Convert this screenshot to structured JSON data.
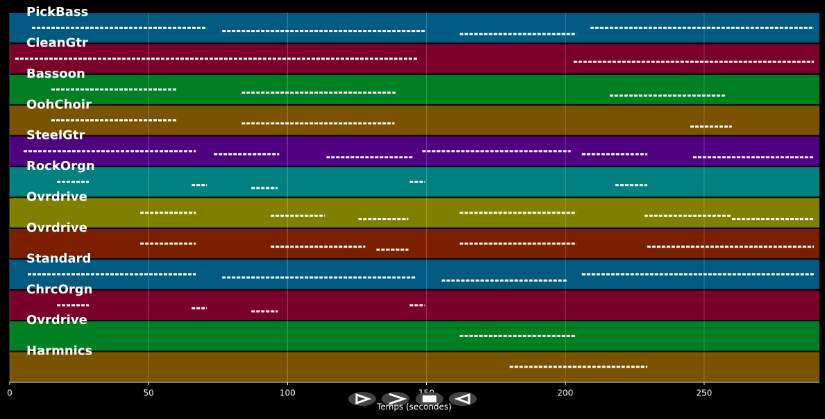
{
  "chart_data": {
    "type": "pianoroll",
    "xlabel": "Temps (secondes)",
    "xlim": [
      0,
      291.5
    ],
    "xticks": [
      0,
      50,
      100,
      150,
      200,
      250
    ],
    "grid": true,
    "series": [
      {
        "name": "PickBass",
        "color": "#005a82",
        "segments": [
          [
            8,
            71
          ],
          [
            76.5,
            149.5
          ],
          [
            162,
            204
          ],
          [
            209,
            289.5
          ]
        ]
      },
      {
        "name": "CleanGtr",
        "color": "#7a0029",
        "segments": [
          [
            2,
            147
          ],
          [
            203,
            289.5
          ]
        ]
      },
      {
        "name": "Bassoon",
        "color": "#007e22",
        "segments": [
          [
            15,
            60
          ],
          [
            83.5,
            139
          ],
          [
            216,
            258
          ]
        ]
      },
      {
        "name": "OohChoir",
        "color": "#7a5200",
        "segments": [
          [
            15,
            60
          ],
          [
            83.5,
            138.5
          ],
          [
            245,
            260
          ]
        ]
      },
      {
        "name": "SteelGtr",
        "color": "#4e0080",
        "segments": [
          [
            5,
            67
          ],
          [
            73.5,
            97
          ],
          [
            114,
            145
          ],
          [
            148.5,
            202
          ],
          [
            206,
            229.5
          ],
          [
            246,
            289.5
          ]
        ]
      },
      {
        "name": "RockOrgn",
        "color": "#008080",
        "segments": [
          [
            17,
            28.5
          ],
          [
            65.5,
            71
          ],
          [
            87,
            96.5
          ],
          [
            144,
            149.5
          ],
          [
            218,
            229.5
          ]
        ]
      },
      {
        "name": "Ovrdrive",
        "color": "#7f7f00",
        "segments": [
          [
            47,
            67
          ],
          [
            94,
            113.5
          ],
          [
            125.5,
            143.5
          ],
          [
            162,
            204
          ],
          [
            228.5,
            259.5
          ],
          [
            260,
            289.5
          ]
        ]
      },
      {
        "name": "Ovrdrive",
        "color": "#7a2000",
        "segments": [
          [
            47,
            67
          ],
          [
            94,
            128
          ],
          [
            132,
            143.5
          ],
          [
            162,
            204
          ],
          [
            229.5,
            289.5
          ]
        ]
      },
      {
        "name": "Standard",
        "color": "#005a82",
        "segments": [
          [
            6.5,
            67
          ],
          [
            76.5,
            146
          ],
          [
            155.5,
            201
          ],
          [
            206,
            289.5
          ]
        ]
      },
      {
        "name": "ChrcOrgn",
        "color": "#7a0029",
        "segments": [
          [
            17,
            28.5
          ],
          [
            65.5,
            71
          ],
          [
            87,
            96.5
          ],
          [
            144,
            149.5
          ]
        ]
      },
      {
        "name": "Ovrdrive",
        "color": "#007e22",
        "segments": [
          [
            162,
            204
          ]
        ]
      },
      {
        "name": "Harmnics",
        "color": "#7a5200",
        "segments": [
          [
            180,
            229.5
          ]
        ]
      }
    ]
  }
}
